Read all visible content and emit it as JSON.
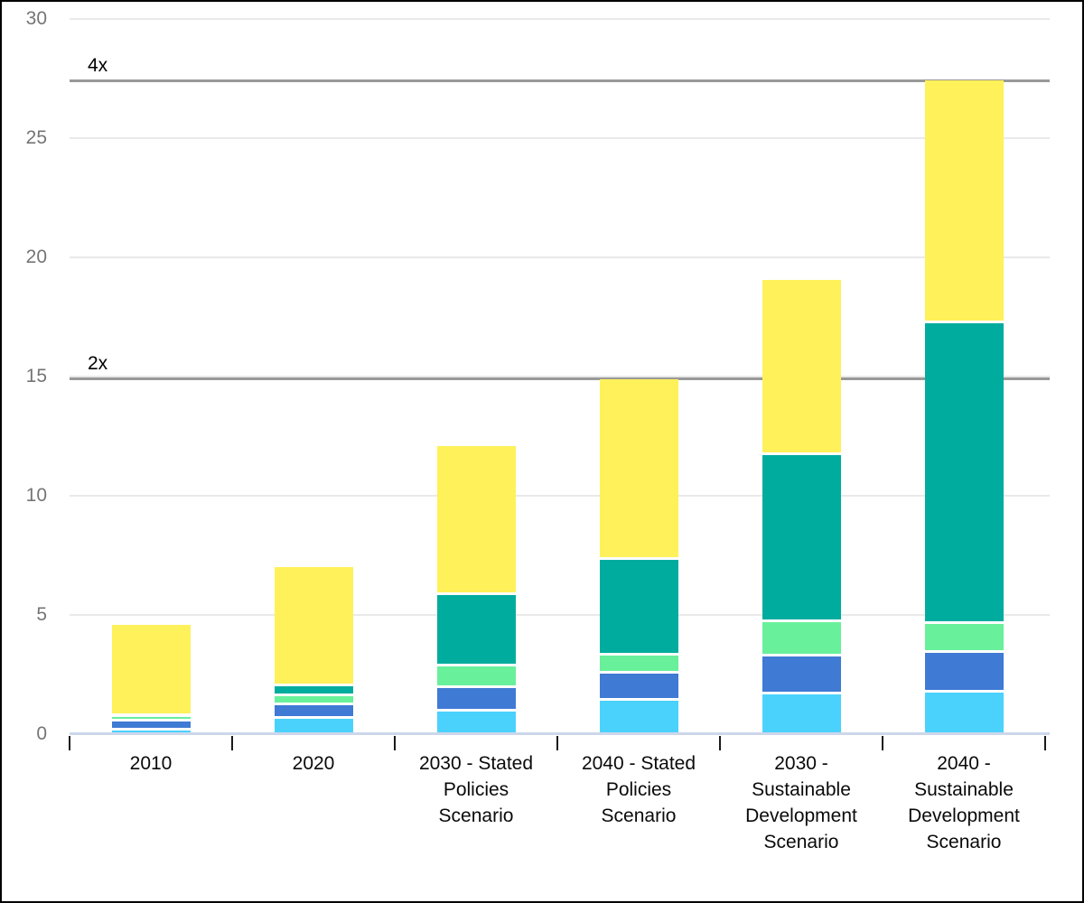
{
  "chart_data": {
    "type": "bar",
    "stacked": true,
    "title": "",
    "xlabel": "",
    "ylabel": "",
    "grid": true,
    "legend": false,
    "categories": [
      "2010",
      "2020",
      "2030 - Stated\nPolicies\nScenario",
      "2040 - Stated\nPolicies\nScenario",
      "2030 -\nSustainable\nDevelopment\nScenario",
      "2040 -\nSustainable\nDevelopment\nScenario"
    ],
    "series": [
      {
        "name": "segment-1-light-blue",
        "color": "#4bd2fc",
        "values": [
          0.22,
          0.7,
          1.0,
          1.45,
          1.72,
          1.8
        ]
      },
      {
        "name": "segment-2-blue",
        "color": "#3f7ad4",
        "values": [
          0.37,
          0.56,
          1.0,
          1.15,
          1.59,
          1.66
        ]
      },
      {
        "name": "segment-3-light-green",
        "color": "#68f09b",
        "values": [
          0.19,
          0.38,
          0.9,
          0.75,
          1.44,
          1.2
        ]
      },
      {
        "name": "segment-4-teal",
        "color": "#00ac9e",
        "values": [
          0.05,
          0.44,
          3.0,
          4.0,
          7.0,
          12.65
        ]
      },
      {
        "name": "segment-5-yellow",
        "color": "#fff159",
        "values": [
          3.77,
          4.91,
          6.2,
          7.55,
          7.3,
          10.1
        ]
      }
    ],
    "totals": [
      4.6,
      6.99,
      12.1,
      14.9,
      19.05,
      27.41
    ],
    "y_axis": {
      "min": 0,
      "max": 30,
      "tick_interval": 5,
      "tick_labels": [
        "0",
        "5",
        "10",
        "15",
        "20",
        "25",
        "30"
      ]
    },
    "annotations": [
      {
        "label": "2x",
        "value": 14.9
      },
      {
        "label": "4x",
        "value": 27.4
      }
    ],
    "colors": {
      "background": "#ffffff",
      "frame_border": "#000000",
      "gridline": "#e9e9e9",
      "axis_baseline": "#cdd7eb",
      "annotation_line": "#999999",
      "x_tick": "#1a1a1a",
      "x_label_text": "#0a0a0a",
      "y_label_text": "#757575"
    }
  }
}
